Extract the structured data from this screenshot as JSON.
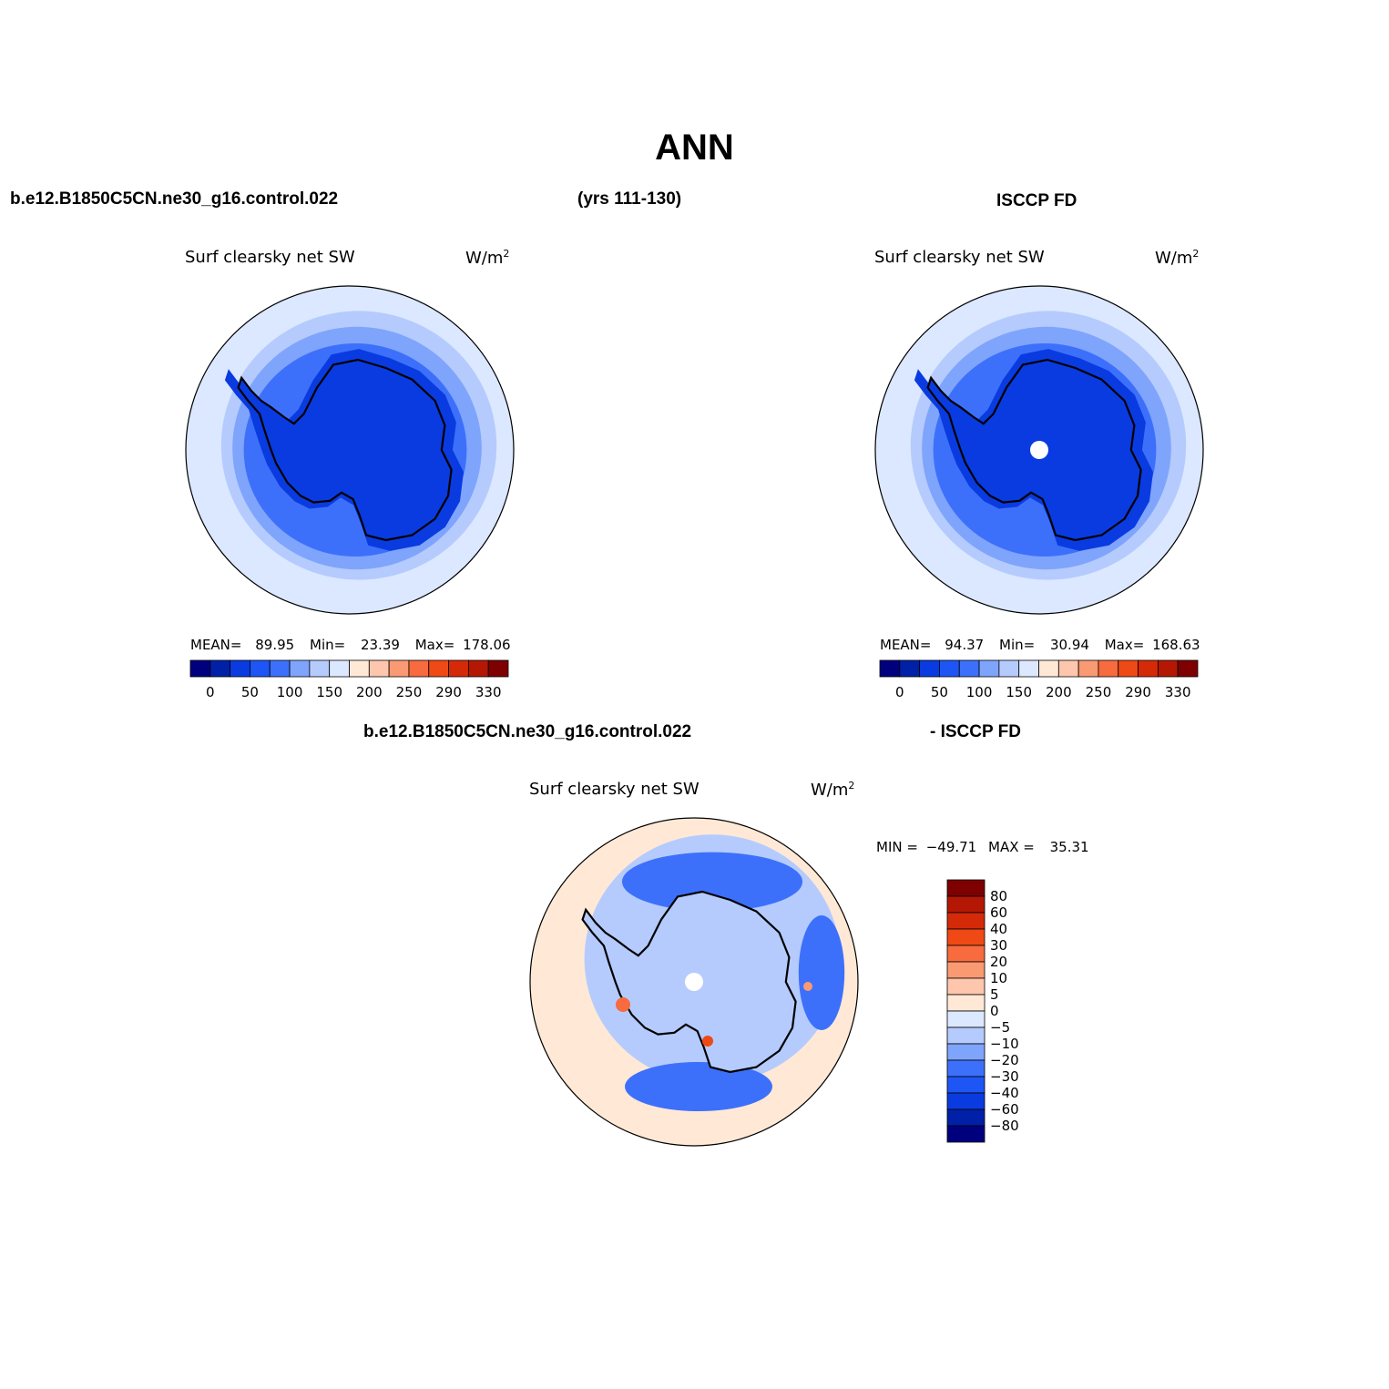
{
  "main_title": "ANN",
  "header": {
    "case_name": "b.e12.B1850C5CN.ne30_g16.control.022",
    "years": "(yrs 111-130)",
    "obs_name": "ISCCP FD"
  },
  "panels": [
    {
      "variable": "Surf clearsky net SW",
      "units": "W/m",
      "units_sup": "2",
      "stats": {
        "mean_label": "MEAN=",
        "mean": "89.95",
        "min_label": "Min=",
        "min": "23.39",
        "max_label": "Max=",
        "max": "178.06"
      }
    },
    {
      "variable": "Surf clearsky net SW",
      "units": "W/m",
      "units_sup": "2",
      "stats": {
        "mean_label": "MEAN=",
        "mean": "94.37",
        "min_label": "Min=",
        "min": "30.94",
        "max_label": "Max=",
        "max": "168.63"
      }
    }
  ],
  "diff_header": {
    "left": "b.e12.B1850C5CN.ne30_g16.control.022",
    "right": "- ISCCP FD"
  },
  "diff_panel": {
    "variable": "Surf clearsky net SW",
    "units": "W/m",
    "units_sup": "2",
    "stats": {
      "min_label": "MIN =",
      "min": "−49.71",
      "max_label": "MAX =",
      "max": "35.31"
    }
  },
  "colorbar_abs": {
    "colors": [
      "#00007f",
      "#0020a8",
      "#0a3be0",
      "#1e55f5",
      "#3d70fa",
      "#7fa4fc",
      "#b5cbfd",
      "#dbe8ff",
      "#ffe9d6",
      "#fdc6ad",
      "#f99a73",
      "#f76b3e",
      "#ef4915",
      "#d52a08",
      "#b41804",
      "#7e0000"
    ],
    "labels": [
      "0",
      "50",
      "100",
      "150",
      "200",
      "250",
      "290",
      "330"
    ]
  },
  "colorbar_diff": {
    "colors": [
      "#7e0000",
      "#b41804",
      "#d52a08",
      "#ef4915",
      "#f76b3e",
      "#f99a73",
      "#fdc6ad",
      "#ffe9d6",
      "#dbe8ff",
      "#b5cbfd",
      "#7fa4fc",
      "#3d70fa",
      "#1e55f5",
      "#0a3be0",
      "#0020a8",
      "#00007f"
    ],
    "labels": [
      "80",
      "60",
      "40",
      "30",
      "20",
      "10",
      "5",
      "0",
      "−5",
      "−10",
      "−20",
      "−30",
      "−40",
      "−60",
      "−80"
    ]
  },
  "colors": {
    "ocean_outer_abs": "#dbe8ff",
    "ocean_mid_abs": "#b5cbfd",
    "ocean_inner_abs": "#7fa4fc",
    "ocean_deep_abs": "#3d70fa",
    "land_abs": "#0a3be0",
    "land_dark_abs": "#0020a8",
    "diff_outer": "#ffe9d6",
    "diff_mid": "#b5cbfd",
    "diff_strong": "#3d70fa",
    "diff_land": "#b5cbfd",
    "pole_mask": "#ffffff"
  }
}
